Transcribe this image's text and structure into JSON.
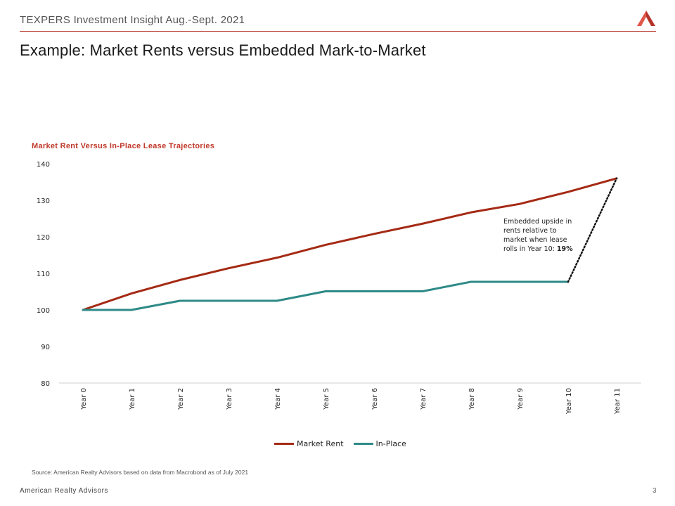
{
  "header": {
    "title": "TEXPERS Investment Insight Aug.-Sept. 2021",
    "logo_icon": "american-realty-advisors-logo-icon"
  },
  "slide": {
    "title": "Example: Market Rents versus Embedded Mark-to-Market"
  },
  "annotation": {
    "text": "Embedded upside in rents relative to market when lease rolls in Year 10: ",
    "highlight": "19%"
  },
  "source": "Source: American Realty Advisors based on data from Macrobond as of July 2021",
  "footer": {
    "company": "American Realty Advisors",
    "page_number": "3"
  },
  "colors": {
    "accent": "#b5342a",
    "market_rent": "#a42a14",
    "in_place": "#2e8a87"
  },
  "chart_data": {
    "type": "line",
    "title": "Market Rent Versus In-Place Lease Trajectories",
    "categories": [
      "Year 0",
      "Year 1",
      "Year 2",
      "Year 3",
      "Year 4",
      "Year 5",
      "Year 6",
      "Year 7",
      "Year 8",
      "Year 9",
      "Year 10",
      "Year 11"
    ],
    "ylim": [
      80,
      140
    ],
    "yticks": [
      140,
      130,
      120,
      110,
      100,
      90,
      80
    ],
    "legend_position": "bottom",
    "grid": false,
    "series": [
      {
        "name": "Market Rent",
        "color": "#a42a14",
        "values": [
          100,
          104.5,
          108.2,
          111.4,
          114.3,
          117.8,
          120.8,
          123.6,
          126.7,
          129.0,
          132.3,
          136.0
        ]
      },
      {
        "name": "In-Place",
        "color": "#2e8a87",
        "values": [
          100,
          100,
          102.5,
          102.5,
          102.5,
          105.1,
          105.1,
          105.1,
          107.7,
          107.7,
          107.7,
          null
        ]
      }
    ],
    "connector": {
      "from_category": "Year 10",
      "from_value": 107.7,
      "to_category": "Year 11",
      "to_value": 136.0,
      "style": "dotted"
    }
  }
}
